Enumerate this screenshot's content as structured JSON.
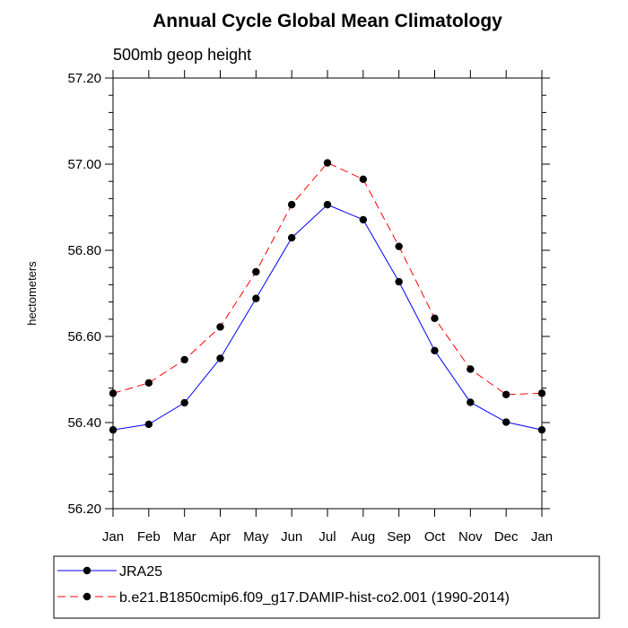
{
  "chart_data": {
    "type": "line",
    "title": "Annual Cycle Global Mean Climatology",
    "subtitle": "500mb geop height",
    "ylabel": "hectometers",
    "xlabel": "",
    "categories": [
      "Jan",
      "Feb",
      "Mar",
      "Apr",
      "May",
      "Jun",
      "Jul",
      "Aug",
      "Sep",
      "Oct",
      "Nov",
      "Dec",
      "Jan"
    ],
    "ylim": [
      56.2,
      57.2
    ],
    "yticks": [
      "56.20",
      "56.40",
      "56.60",
      "56.80",
      "57.00",
      "57.20"
    ],
    "series": [
      {
        "name": "JRA25",
        "color": "#0000ff",
        "line_style": "solid",
        "marker": "filled-circle",
        "values": [
          56.383,
          56.396,
          56.446,
          56.549,
          56.688,
          56.829,
          56.906,
          56.871,
          56.727,
          56.567,
          56.447,
          56.401,
          56.383
        ]
      },
      {
        "name": "b.e21.B1850cmip6.f09_g17.DAMIP-hist-co2.001 (1990-2014)",
        "color": "#ff0000",
        "line_style": "dashed",
        "marker": "filled-circle",
        "values": [
          56.468,
          56.492,
          56.546,
          56.622,
          56.75,
          56.906,
          57.003,
          56.965,
          56.809,
          56.642,
          56.524,
          56.465,
          56.468
        ]
      }
    ],
    "grid": false,
    "legend_position": "bottom"
  }
}
